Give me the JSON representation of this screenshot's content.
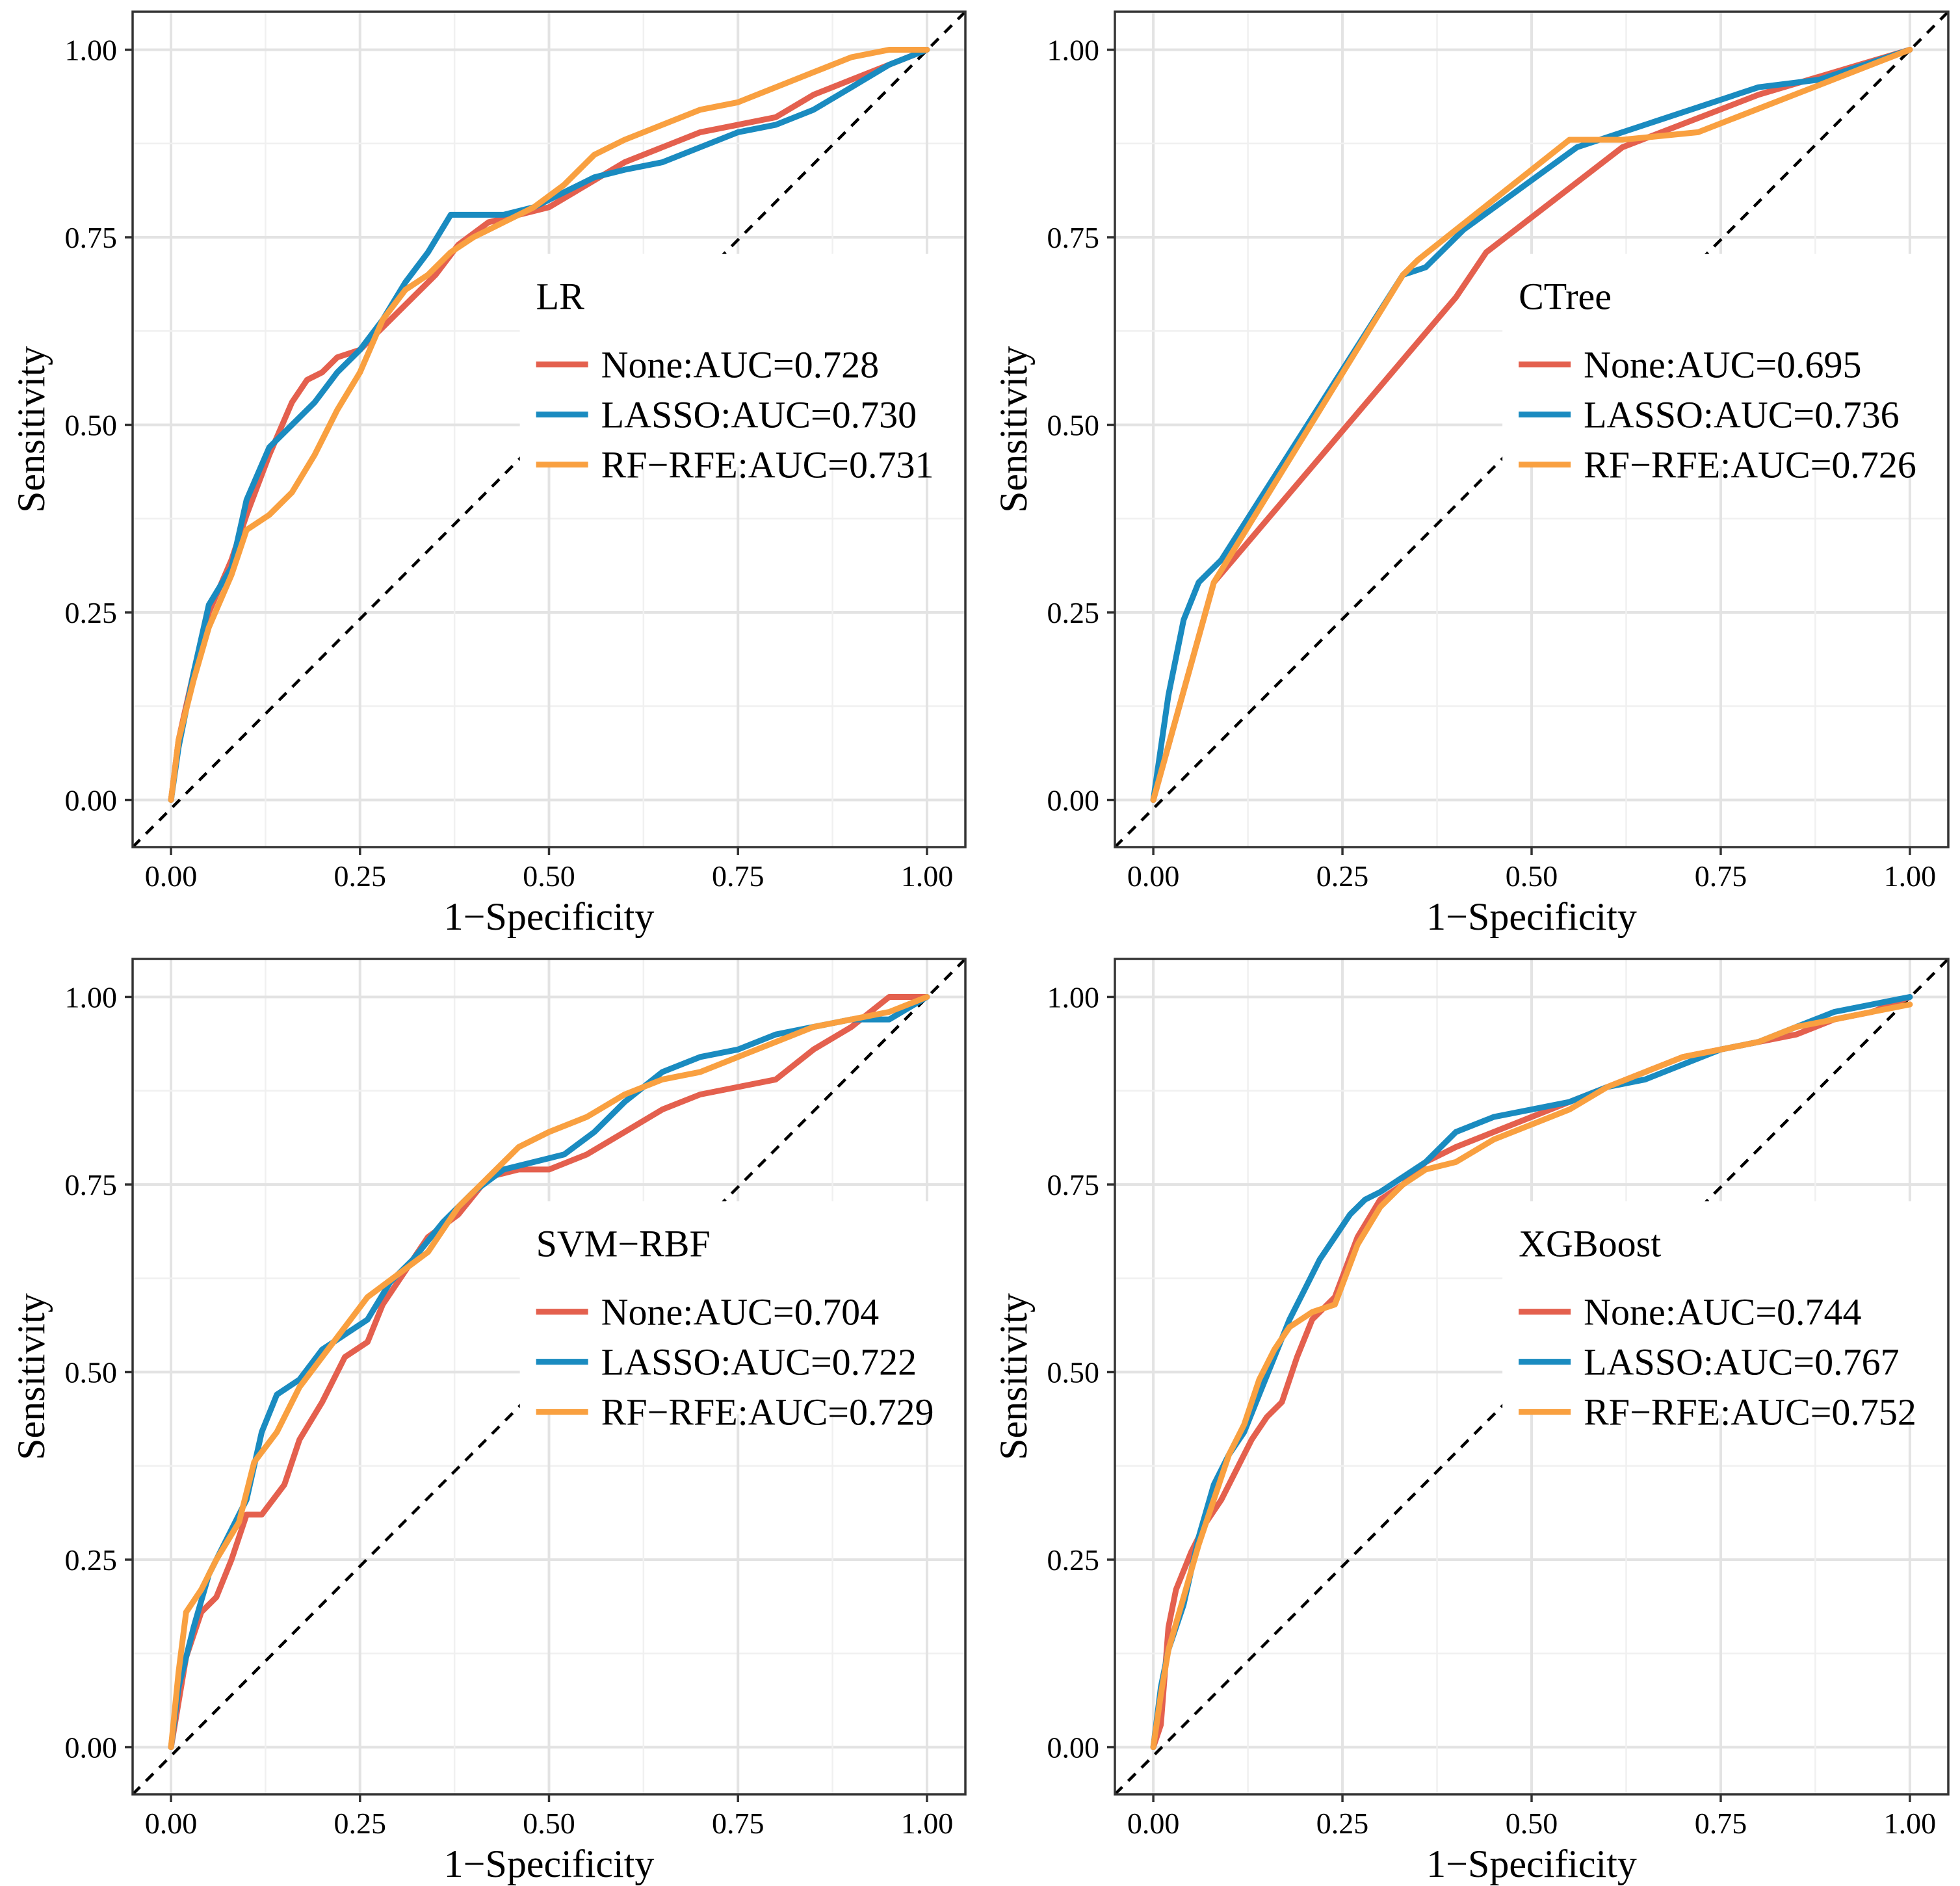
{
  "chart_data": [
    {
      "type": "line",
      "panel_position": "top-left",
      "xlabel": "1−Specificity",
      "ylabel": "Sensitivity",
      "xlim": [
        0,
        1
      ],
      "ylim": [
        0,
        1
      ],
      "xticks": [
        "0.00",
        "0.25",
        "0.50",
        "0.75",
        "1.00"
      ],
      "yticks": [
        "0.00",
        "0.25",
        "0.50",
        "0.75",
        "1.00"
      ],
      "grid": true,
      "reference_line": "dashed diagonal",
      "legend": {
        "title": "LR",
        "placement": "bottom-right"
      },
      "series": [
        {
          "name": "None",
          "label": "None:AUC=0.728",
          "color": "#E4604E",
          "x": [
            0,
            0.01,
            0.03,
            0.05,
            0.08,
            0.1,
            0.13,
            0.16,
            0.18,
            0.2,
            0.22,
            0.25,
            0.28,
            0.31,
            0.35,
            0.38,
            0.42,
            0.46,
            0.5,
            0.55,
            0.6,
            0.65,
            0.7,
            0.75,
            0.8,
            0.85,
            0.9,
            0.95,
            1.0
          ],
          "y": [
            0,
            0.08,
            0.17,
            0.25,
            0.32,
            0.38,
            0.46,
            0.53,
            0.56,
            0.57,
            0.59,
            0.6,
            0.63,
            0.66,
            0.7,
            0.74,
            0.77,
            0.78,
            0.79,
            0.82,
            0.85,
            0.87,
            0.89,
            0.9,
            0.91,
            0.94,
            0.96,
            0.98,
            1.0
          ]
        },
        {
          "name": "LASSO",
          "label": "LASSO:AUC=0.730",
          "color": "#1A8BC0",
          "x": [
            0,
            0.01,
            0.03,
            0.05,
            0.08,
            0.1,
            0.13,
            0.16,
            0.19,
            0.22,
            0.25,
            0.28,
            0.31,
            0.34,
            0.37,
            0.4,
            0.44,
            0.48,
            0.52,
            0.56,
            0.6,
            0.65,
            0.7,
            0.75,
            0.8,
            0.85,
            0.9,
            0.95,
            1.0
          ],
          "y": [
            0,
            0.07,
            0.17,
            0.26,
            0.31,
            0.4,
            0.47,
            0.5,
            0.53,
            0.57,
            0.6,
            0.64,
            0.69,
            0.73,
            0.78,
            0.78,
            0.78,
            0.79,
            0.81,
            0.83,
            0.84,
            0.85,
            0.87,
            0.89,
            0.9,
            0.92,
            0.95,
            0.98,
            1.0
          ]
        },
        {
          "name": "RF−RFE",
          "label": "RF−RFE:AUC=0.731",
          "color": "#F9A040",
          "x": [
            0,
            0.01,
            0.03,
            0.05,
            0.08,
            0.1,
            0.13,
            0.16,
            0.19,
            0.22,
            0.25,
            0.28,
            0.31,
            0.34,
            0.37,
            0.4,
            0.44,
            0.48,
            0.52,
            0.56,
            0.6,
            0.65,
            0.7,
            0.75,
            0.8,
            0.85,
            0.9,
            0.95,
            1.0
          ],
          "y": [
            0,
            0.08,
            0.16,
            0.23,
            0.3,
            0.36,
            0.38,
            0.41,
            0.46,
            0.52,
            0.57,
            0.64,
            0.68,
            0.7,
            0.73,
            0.75,
            0.77,
            0.79,
            0.82,
            0.86,
            0.88,
            0.9,
            0.92,
            0.93,
            0.95,
            0.97,
            0.99,
            1.0,
            1.0
          ]
        }
      ]
    },
    {
      "type": "line",
      "panel_position": "top-right",
      "xlabel": "1−Specificity",
      "ylabel": "Sensitivity",
      "xlim": [
        0,
        1
      ],
      "ylim": [
        0,
        1
      ],
      "xticks": [
        "0.00",
        "0.25",
        "0.50",
        "0.75",
        "1.00"
      ],
      "yticks": [
        "0.00",
        "0.25",
        "0.50",
        "0.75",
        "1.00"
      ],
      "grid": true,
      "reference_line": "dashed diagonal",
      "legend": {
        "title": "CTree",
        "placement": "bottom-right"
      },
      "series": [
        {
          "name": "None",
          "label": "None:AUC=0.695",
          "color": "#E4604E",
          "x": [
            0,
            0.08,
            0.4,
            0.44,
            0.62,
            0.8,
            1.0
          ],
          "y": [
            0,
            0.29,
            0.67,
            0.73,
            0.87,
            0.94,
            1.0
          ]
        },
        {
          "name": "LASSO",
          "label": "LASSO:AUC=0.736",
          "color": "#1A8BC0",
          "x": [
            0,
            0.02,
            0.04,
            0.06,
            0.09,
            0.33,
            0.36,
            0.41,
            0.56,
            0.62,
            0.8,
            0.88,
            1.0
          ],
          "y": [
            0,
            0.14,
            0.24,
            0.29,
            0.32,
            0.7,
            0.71,
            0.76,
            0.87,
            0.89,
            0.95,
            0.96,
            1.0
          ]
        },
        {
          "name": "RF−RFE",
          "label": "RF−RFE:AUC=0.726",
          "color": "#F9A040",
          "x": [
            0,
            0.08,
            0.33,
            0.35,
            0.4,
            0.55,
            0.62,
            0.72,
            1.0
          ],
          "y": [
            0,
            0.29,
            0.7,
            0.72,
            0.76,
            0.88,
            0.88,
            0.89,
            1.0
          ]
        }
      ]
    },
    {
      "type": "line",
      "panel_position": "bottom-left",
      "xlabel": "1−Specificity",
      "ylabel": "Sensitivity",
      "xlim": [
        0,
        1
      ],
      "ylim": [
        0,
        1
      ],
      "xticks": [
        "0.00",
        "0.25",
        "0.50",
        "0.75",
        "1.00"
      ],
      "yticks": [
        "0.00",
        "0.25",
        "0.50",
        "0.75",
        "1.00"
      ],
      "grid": true,
      "reference_line": "dashed diagonal",
      "legend": {
        "title": "SVM−RBF",
        "placement": "bottom-right"
      },
      "series": [
        {
          "name": "None",
          "label": "None:AUC=0.704",
          "color": "#E4604E",
          "x": [
            0,
            0.02,
            0.04,
            0.06,
            0.08,
            0.1,
            0.12,
            0.15,
            0.17,
            0.2,
            0.23,
            0.26,
            0.28,
            0.3,
            0.34,
            0.38,
            0.42,
            0.46,
            0.5,
            0.55,
            0.6,
            0.65,
            0.7,
            0.75,
            0.8,
            0.85,
            0.9,
            0.95,
            1.0
          ],
          "y": [
            0,
            0.12,
            0.18,
            0.2,
            0.25,
            0.31,
            0.31,
            0.35,
            0.41,
            0.46,
            0.52,
            0.54,
            0.59,
            0.62,
            0.68,
            0.71,
            0.76,
            0.77,
            0.77,
            0.79,
            0.82,
            0.85,
            0.87,
            0.88,
            0.89,
            0.93,
            0.96,
            1.0,
            1.0
          ]
        },
        {
          "name": "LASSO",
          "label": "LASSO:AUC=0.722",
          "color": "#1A8BC0",
          "x": [
            0,
            0.01,
            0.03,
            0.05,
            0.08,
            0.1,
            0.12,
            0.14,
            0.17,
            0.2,
            0.23,
            0.26,
            0.29,
            0.32,
            0.36,
            0.4,
            0.44,
            0.48,
            0.52,
            0.56,
            0.6,
            0.65,
            0.7,
            0.75,
            0.8,
            0.85,
            0.9,
            0.95,
            1.0
          ],
          "y": [
            0,
            0.08,
            0.16,
            0.23,
            0.29,
            0.33,
            0.42,
            0.47,
            0.49,
            0.53,
            0.55,
            0.57,
            0.62,
            0.65,
            0.7,
            0.74,
            0.77,
            0.78,
            0.79,
            0.82,
            0.86,
            0.9,
            0.92,
            0.93,
            0.95,
            0.96,
            0.97,
            0.97,
            1.0
          ]
        },
        {
          "name": "RF−RFE",
          "label": "RF−RFE:AUC=0.729",
          "color": "#F9A040",
          "x": [
            0,
            0.01,
            0.02,
            0.04,
            0.06,
            0.09,
            0.11,
            0.14,
            0.17,
            0.2,
            0.23,
            0.26,
            0.3,
            0.34,
            0.38,
            0.42,
            0.46,
            0.5,
            0.55,
            0.6,
            0.65,
            0.7,
            0.75,
            0.8,
            0.85,
            0.9,
            0.95,
            1.0
          ],
          "y": [
            0,
            0.1,
            0.18,
            0.21,
            0.25,
            0.3,
            0.38,
            0.42,
            0.48,
            0.52,
            0.56,
            0.6,
            0.63,
            0.66,
            0.72,
            0.76,
            0.8,
            0.82,
            0.84,
            0.87,
            0.89,
            0.9,
            0.92,
            0.94,
            0.96,
            0.97,
            0.98,
            1.0
          ]
        }
      ]
    },
    {
      "type": "line",
      "panel_position": "bottom-right",
      "xlabel": "1−Specificity",
      "ylabel": "Sensitivity",
      "xlim": [
        0,
        1
      ],
      "ylim": [
        0,
        1
      ],
      "xticks": [
        "0.00",
        "0.25",
        "0.50",
        "0.75",
        "1.00"
      ],
      "yticks": [
        "0.00",
        "0.25",
        "0.50",
        "0.75",
        "1.00"
      ],
      "grid": true,
      "reference_line": "dashed diagonal",
      "legend": {
        "title": "XGBoost",
        "placement": "bottom-right"
      },
      "series": [
        {
          "name": "None",
          "label": "None:AUC=0.744",
          "color": "#E4604E",
          "x": [
            0,
            0.01,
            0.02,
            0.03,
            0.05,
            0.07,
            0.09,
            0.11,
            0.13,
            0.15,
            0.17,
            0.19,
            0.21,
            0.24,
            0.27,
            0.3,
            0.33,
            0.36,
            0.4,
            0.45,
            0.5,
            0.55,
            0.6,
            0.65,
            0.7,
            0.75,
            0.8,
            0.85,
            0.9,
            0.95,
            1.0
          ],
          "y": [
            0,
            0.03,
            0.16,
            0.21,
            0.26,
            0.3,
            0.33,
            0.37,
            0.41,
            0.44,
            0.46,
            0.52,
            0.57,
            0.6,
            0.68,
            0.73,
            0.75,
            0.78,
            0.8,
            0.82,
            0.84,
            0.86,
            0.88,
            0.9,
            0.92,
            0.93,
            0.94,
            0.95,
            0.97,
            0.98,
            1.0
          ]
        },
        {
          "name": "LASSO",
          "label": "LASSO:AUC=0.767",
          "color": "#1A8BC0",
          "x": [
            0,
            0.01,
            0.02,
            0.04,
            0.06,
            0.08,
            0.1,
            0.12,
            0.14,
            0.16,
            0.18,
            0.2,
            0.22,
            0.24,
            0.26,
            0.28,
            0.3,
            0.33,
            0.36,
            0.4,
            0.45,
            0.5,
            0.55,
            0.6,
            0.65,
            0.7,
            0.75,
            0.8,
            0.85,
            0.9,
            0.95,
            1.0
          ],
          "y": [
            0,
            0.08,
            0.13,
            0.19,
            0.28,
            0.35,
            0.39,
            0.42,
            0.47,
            0.52,
            0.57,
            0.61,
            0.65,
            0.68,
            0.71,
            0.73,
            0.74,
            0.76,
            0.78,
            0.82,
            0.84,
            0.85,
            0.86,
            0.88,
            0.89,
            0.91,
            0.93,
            0.94,
            0.96,
            0.98,
            0.99,
            1.0
          ]
        },
        {
          "name": "RF−RFE",
          "label": "RF−RFE:AUC=0.752",
          "color": "#F9A040",
          "x": [
            0,
            0.01,
            0.02,
            0.04,
            0.06,
            0.08,
            0.1,
            0.12,
            0.14,
            0.16,
            0.18,
            0.21,
            0.24,
            0.27,
            0.3,
            0.33,
            0.36,
            0.4,
            0.45,
            0.5,
            0.55,
            0.6,
            0.65,
            0.7,
            0.75,
            0.8,
            0.85,
            0.9,
            0.95,
            1.0
          ],
          "y": [
            0,
            0.07,
            0.13,
            0.2,
            0.27,
            0.33,
            0.39,
            0.43,
            0.49,
            0.53,
            0.56,
            0.58,
            0.59,
            0.67,
            0.72,
            0.75,
            0.77,
            0.78,
            0.81,
            0.83,
            0.85,
            0.88,
            0.9,
            0.92,
            0.93,
            0.94,
            0.96,
            0.97,
            0.98,
            0.99
          ]
        }
      ]
    }
  ]
}
